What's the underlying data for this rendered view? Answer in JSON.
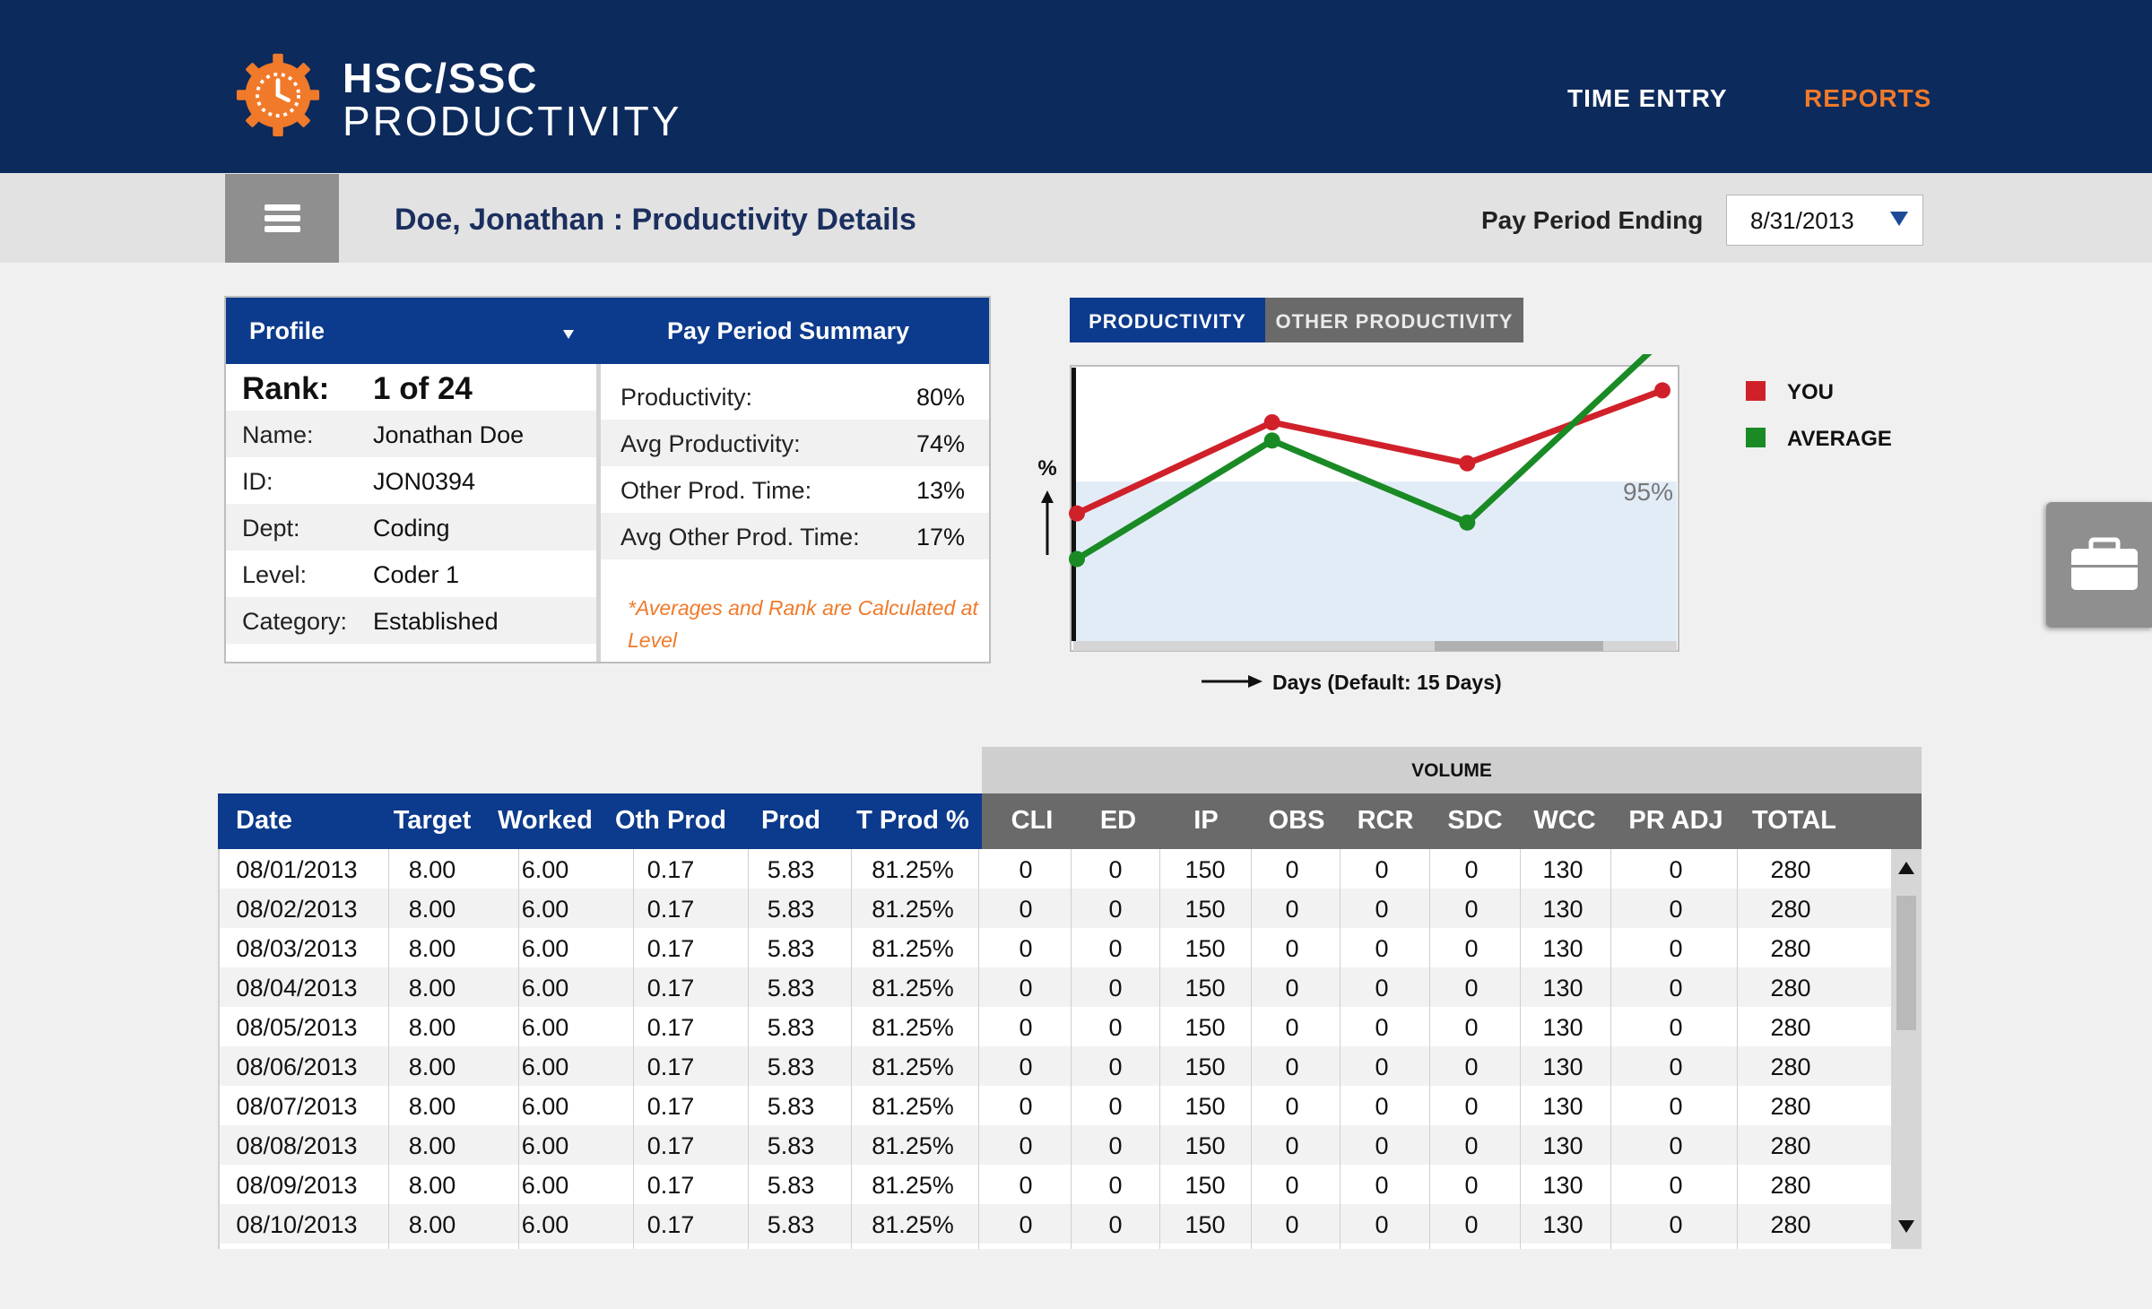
{
  "header": {
    "logo_line1": "HSC/SSC",
    "logo_line2": "PRODUCTIVITY",
    "nav": [
      {
        "label": "TIME ENTRY",
        "active": false
      },
      {
        "label": "REPORTS",
        "active": true
      }
    ],
    "colors": {
      "navy": "#0c2a5b",
      "accent": "#f07a2a"
    }
  },
  "subheader": {
    "title": "Doe, Jonathan : Productivity Details",
    "pay_period_label": "Pay Period Ending",
    "pay_period_value": "8/31/2013",
    "menu_icon": "hamburger-icon"
  },
  "profile": {
    "heading": "Profile",
    "rank_label": "Rank:",
    "rank_value": "1 of 24",
    "rows": [
      {
        "label": "Name:",
        "value": "Jonathan Doe"
      },
      {
        "label": "ID:",
        "value": "JON0394"
      },
      {
        "label": "Dept:",
        "value": "Coding"
      },
      {
        "label": "Level:",
        "value": "Coder 1"
      },
      {
        "label": "Category:",
        "value": "Established"
      }
    ]
  },
  "summary": {
    "heading": "Pay Period Summary",
    "rows": [
      {
        "label": "Productivity:",
        "value": "80%"
      },
      {
        "label": "Avg Productivity:",
        "value": "74%"
      },
      {
        "label": "Other Prod. Time:",
        "value": "13%"
      },
      {
        "label": "Avg Other Prod. Time:",
        "value": "17%"
      }
    ],
    "note": "*Averages and Rank are Calculated at Level"
  },
  "chart_tabs": [
    {
      "label": "PRODUCTIVITY",
      "active": true
    },
    {
      "label": "OTHER PRODUCTIVITY",
      "active": false
    }
  ],
  "chart_data": {
    "type": "line",
    "ylabel": "%",
    "xlabel": "Days (Default: 15 Days)",
    "threshold_label": "95%",
    "threshold_value": 95,
    "ylim": [
      60,
      120
    ],
    "x": [
      1,
      2,
      3,
      4
    ],
    "series": [
      {
        "name": "YOU",
        "color": "#d0212a",
        "values": [
          88,
          108,
          99,
          115
        ]
      },
      {
        "name": "AVERAGE",
        "color": "#1a8a25",
        "values": [
          78,
          104,
          86,
          126
        ]
      }
    ]
  },
  "table": {
    "volume_label": "VOLUME",
    "columns": [
      "Date",
      "Target",
      "Worked",
      "Oth Prod",
      "Prod",
      "T Prod %",
      "CLI",
      "ED",
      "IP",
      "OBS",
      "RCR",
      "SDC",
      "WCC",
      "PR ADJ",
      "TOTAL"
    ],
    "rows": [
      [
        "08/01/2013",
        "8.00",
        "6.00",
        "0.17",
        "5.83",
        "81.25%",
        "0",
        "0",
        "150",
        "0",
        "0",
        "0",
        "130",
        "0",
        "280"
      ],
      [
        "08/02/2013",
        "8.00",
        "6.00",
        "0.17",
        "5.83",
        "81.25%",
        "0",
        "0",
        "150",
        "0",
        "0",
        "0",
        "130",
        "0",
        "280"
      ],
      [
        "08/03/2013",
        "8.00",
        "6.00",
        "0.17",
        "5.83",
        "81.25%",
        "0",
        "0",
        "150",
        "0",
        "0",
        "0",
        "130",
        "0",
        "280"
      ],
      [
        "08/04/2013",
        "8.00",
        "6.00",
        "0.17",
        "5.83",
        "81.25%",
        "0",
        "0",
        "150",
        "0",
        "0",
        "0",
        "130",
        "0",
        "280"
      ],
      [
        "08/05/2013",
        "8.00",
        "6.00",
        "0.17",
        "5.83",
        "81.25%",
        "0",
        "0",
        "150",
        "0",
        "0",
        "0",
        "130",
        "0",
        "280"
      ],
      [
        "08/06/2013",
        "8.00",
        "6.00",
        "0.17",
        "5.83",
        "81.25%",
        "0",
        "0",
        "150",
        "0",
        "0",
        "0",
        "130",
        "0",
        "280"
      ],
      [
        "08/07/2013",
        "8.00",
        "6.00",
        "0.17",
        "5.83",
        "81.25%",
        "0",
        "0",
        "150",
        "0",
        "0",
        "0",
        "130",
        "0",
        "280"
      ],
      [
        "08/08/2013",
        "8.00",
        "6.00",
        "0.17",
        "5.83",
        "81.25%",
        "0",
        "0",
        "150",
        "0",
        "0",
        "0",
        "130",
        "0",
        "280"
      ],
      [
        "08/09/2013",
        "8.00",
        "6.00",
        "0.17",
        "5.83",
        "81.25%",
        "0",
        "0",
        "150",
        "0",
        "0",
        "0",
        "130",
        "0",
        "280"
      ],
      [
        "08/10/2013",
        "8.00",
        "6.00",
        "0.17",
        "5.83",
        "81.25%",
        "0",
        "0",
        "150",
        "0",
        "0",
        "0",
        "130",
        "0",
        "280"
      ]
    ]
  },
  "side_tool": {
    "icon": "briefcase-icon"
  }
}
